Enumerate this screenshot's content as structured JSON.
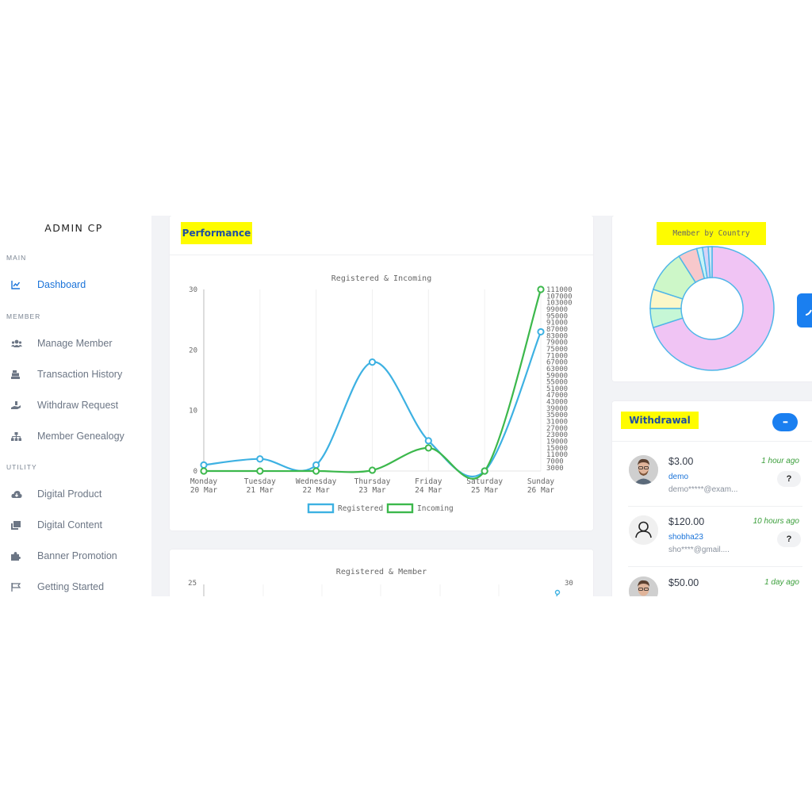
{
  "sidebar": {
    "brand": "ADMIN CP",
    "sections": [
      {
        "title": "MAIN",
        "items": [
          {
            "label": "Dashboard",
            "icon": "chart-icon",
            "active": true
          }
        ]
      },
      {
        "title": "MEMBER",
        "items": [
          {
            "label": "Manage Member",
            "icon": "users-icon"
          },
          {
            "label": "Transaction History",
            "icon": "cash-register-icon"
          },
          {
            "label": "Withdraw Request",
            "icon": "hand-holding-icon"
          },
          {
            "label": "Member Genealogy",
            "icon": "sitemap-icon"
          }
        ]
      },
      {
        "title": "UTILITY",
        "items": [
          {
            "label": "Digital Product",
            "icon": "cloud-download-icon"
          },
          {
            "label": "Digital Content",
            "icon": "clone-icon"
          },
          {
            "label": "Banner Promotion",
            "icon": "puzzle-icon"
          },
          {
            "label": "Getting Started",
            "icon": "flag-icon"
          }
        ]
      }
    ]
  },
  "performance": {
    "heading": "Performance",
    "chart_data": {
      "type": "line",
      "title": "Registered & Incoming",
      "categories": [
        [
          "Monday",
          "20 Mar"
        ],
        [
          "Tuesday",
          "21 Mar"
        ],
        [
          "Wednesday",
          "22 Mar"
        ],
        [
          "Thursday",
          "23 Mar"
        ],
        [
          "Friday",
          "24 Mar"
        ],
        [
          "Saturday",
          "25 Mar"
        ],
        [
          "Sunday",
          "26 Mar"
        ]
      ],
      "y_left": {
        "ticks": [
          0,
          10,
          20,
          30
        ],
        "ylim": [
          0,
          30
        ]
      },
      "y_right": {
        "ticks": [
          3000,
          7000,
          11000,
          15000,
          19000,
          23000,
          27000,
          31000,
          35000,
          39000,
          43000,
          47000,
          51000,
          55000,
          59000,
          63000,
          67000,
          71000,
          75000,
          79000,
          83000,
          87000,
          91000,
          95000,
          99000,
          103000,
          107000,
          111000
        ],
        "ylim": [
          1000,
          111000
        ]
      },
      "series": [
        {
          "name": "Registered",
          "axis": "left",
          "color": "#3db1e2",
          "values": [
            1,
            2,
            1,
            18,
            5,
            0,
            23
          ]
        },
        {
          "name": "Incoming",
          "axis": "right",
          "color": "#3cb84c",
          "values": [
            1000,
            1000,
            1000,
            1500,
            15000,
            1000,
            111000
          ]
        }
      ],
      "legend": "bottom",
      "grid": true
    }
  },
  "second_chart": {
    "chart_data": {
      "type": "line",
      "title": "Registered & Member",
      "y_left_top_tick": "25",
      "y_right_top_tick": "30"
    }
  },
  "country": {
    "chart_data": {
      "type": "pie",
      "title": "Member by Country",
      "slices": [
        {
          "value": 70,
          "color": "#f0c4f4"
        },
        {
          "value": 5,
          "color": "#c6f7d6"
        },
        {
          "value": 5,
          "color": "#fbf7c8"
        },
        {
          "value": 11,
          "color": "#cdf7c8"
        },
        {
          "value": 5,
          "color": "#f7c8cb"
        },
        {
          "value": 1.5,
          "color": "#c8f5f7"
        },
        {
          "value": 1.5,
          "color": "#d5d3f7"
        },
        {
          "value": 1,
          "color": "#cde6f7"
        }
      ],
      "border_color": "#4fb6e8"
    }
  },
  "withdrawal": {
    "heading": "Withdrawal",
    "menu_label": "•••",
    "items": [
      {
        "amount": "$3.00",
        "username": "demo",
        "email": "demo*****@exam...",
        "time": "1 hour ago",
        "action": "?",
        "avatar": "photo"
      },
      {
        "amount": "$120.00",
        "username": "shobha23",
        "email": "sho****@gmail....",
        "time": "10 hours ago",
        "action": "?",
        "avatar": "default"
      },
      {
        "amount": "$50.00",
        "username": "",
        "email": "",
        "time": "1 day ago",
        "action": "?",
        "avatar": "photo"
      }
    ]
  },
  "colors": {
    "accent": "#1a73d9",
    "highlight": "#fefc00",
    "button": "#1a7ff0"
  }
}
